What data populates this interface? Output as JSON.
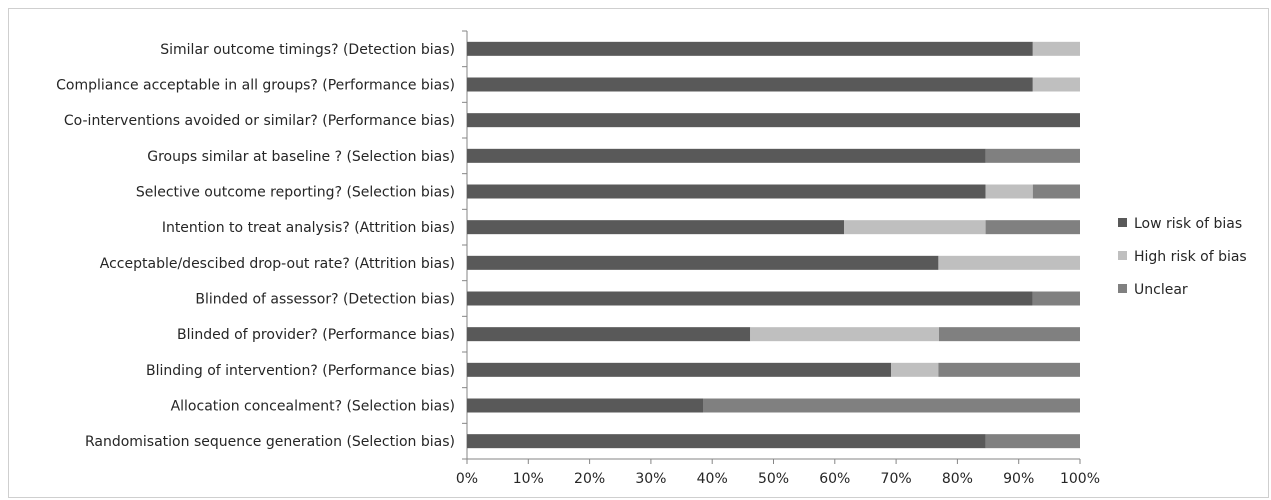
{
  "chart_data": {
    "type": "bar",
    "orientation": "horizontal",
    "stacked": true,
    "percent": true,
    "categories": [
      "Similar outcome timings? (Detection bias)",
      "Compliance acceptable in all groups? (Performance bias)",
      "Co-interventions avoided or similar? (Performance bias)",
      "Groups similar at baseline ? (Selection bias)",
      "Selective outcome reporting? (Selection bias)",
      "Intention to treat analysis? (Attrition bias)",
      "Acceptable/descibed drop-out rate? (Attrition bias)",
      "Blinded of assessor? (Detection bias)",
      "Blinded of provider? (Performance bias)",
      "Blinding of intervention? (Performance bias)",
      "Allocation concealment? (Selection bias)",
      "Randomisation sequence generation (Selection bias)"
    ],
    "series": [
      {
        "name": "Low risk of bias",
        "color": "#595959",
        "values": [
          92.3,
          92.3,
          100,
          84.6,
          84.6,
          61.5,
          76.9,
          92.3,
          46.2,
          69.2,
          38.5,
          84.6
        ]
      },
      {
        "name": "High risk of bias",
        "color": "#bfbfbf",
        "values": [
          7.7,
          7.7,
          0,
          0,
          7.7,
          23.1,
          23.1,
          0,
          30.8,
          7.7,
          0,
          0
        ]
      },
      {
        "name": "Unclear",
        "color": "#808080",
        "values": [
          0,
          0,
          0,
          15.4,
          7.7,
          15.4,
          0,
          7.7,
          23.0,
          23.1,
          61.5,
          15.4
        ]
      }
    ],
    "x_ticks": [
      "0%",
      "10%",
      "20%",
      "30%",
      "40%",
      "50%",
      "60%",
      "70%",
      "80%",
      "90%",
      "100%"
    ],
    "xlim": [
      0,
      100
    ],
    "title": "",
    "xlabel": "",
    "ylabel": "",
    "grid": false,
    "legend_position": "right"
  }
}
